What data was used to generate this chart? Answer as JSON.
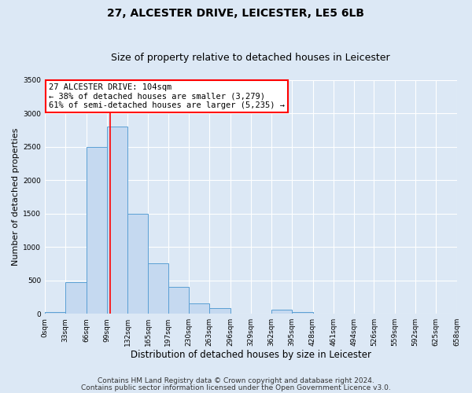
{
  "title": "27, ALCESTER DRIVE, LEICESTER, LE5 6LB",
  "subtitle": "Size of property relative to detached houses in Leicester",
  "xlabel": "Distribution of detached houses by size in Leicester",
  "ylabel": "Number of detached properties",
  "bin_edges": [
    0,
    33,
    66,
    99,
    132,
    165,
    197,
    230,
    263,
    296,
    329,
    362,
    395,
    428,
    461,
    494,
    526,
    559,
    592,
    625,
    658
  ],
  "bin_labels": [
    "0sqm",
    "33sqm",
    "66sqm",
    "99sqm",
    "132sqm",
    "165sqm",
    "197sqm",
    "230sqm",
    "263sqm",
    "296sqm",
    "329sqm",
    "362sqm",
    "395sqm",
    "428sqm",
    "461sqm",
    "494sqm",
    "526sqm",
    "559sqm",
    "592sqm",
    "625sqm",
    "658sqm"
  ],
  "bar_heights": [
    20,
    470,
    2500,
    2800,
    1500,
    750,
    400,
    150,
    80,
    0,
    0,
    60,
    30,
    0,
    0,
    0,
    0,
    0,
    0,
    0
  ],
  "bar_color": "#c5d9f0",
  "bar_edgecolor": "#5a9fd4",
  "property_line_x": 104,
  "property_line_color": "red",
  "ylim": [
    0,
    3500
  ],
  "yticks": [
    0,
    500,
    1000,
    1500,
    2000,
    2500,
    3000,
    3500
  ],
  "annotation_title": "27 ALCESTER DRIVE: 104sqm",
  "annotation_line1": "← 38% of detached houses are smaller (3,279)",
  "annotation_line2": "61% of semi-detached houses are larger (5,235) →",
  "annotation_box_facecolor": "#ffffff",
  "annotation_box_edgecolor": "red",
  "footer_line1": "Contains HM Land Registry data © Crown copyright and database right 2024.",
  "footer_line2": "Contains public sector information licensed under the Open Government Licence v3.0.",
  "fig_facecolor": "#dce8f5",
  "ax_facecolor": "#dce8f5",
  "grid_color": "#ffffff",
  "title_fontsize": 10,
  "subtitle_fontsize": 9,
  "xlabel_fontsize": 8.5,
  "ylabel_fontsize": 8,
  "tick_fontsize": 6.5,
  "annotation_fontsize": 7.5,
  "footer_fontsize": 6.5
}
